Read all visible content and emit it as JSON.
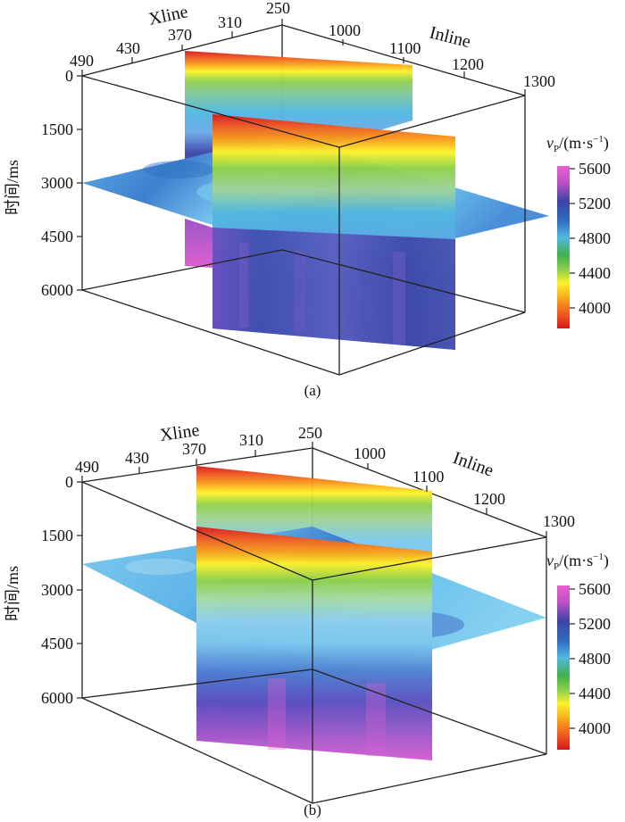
{
  "colors": {
    "scale": [
      "#d7191c",
      "#f05a22",
      "#f9a21c",
      "#fdf22a",
      "#8fd24b",
      "#3fb24c",
      "#50b8e0",
      "#2f6fc0",
      "#3a44a6",
      "#c04fc6",
      "#e860d0"
    ]
  },
  "legend": {
    "title_main": "v",
    "title_sub": "P",
    "title_rest": "/(m·s",
    "title_sup": "−1",
    "title_close": ")",
    "ticks": [
      "5600",
      "5200",
      "4800",
      "4400",
      "4000"
    ]
  },
  "axes": {
    "xline_label": "Xline",
    "inline_label": "Inline",
    "time_label": "时间/ms",
    "xline_ticks": [
      "490",
      "430",
      "370",
      "310",
      "250"
    ],
    "inline_ticks": [
      "1000",
      "1100",
      "1200",
      "1300"
    ],
    "time_ticks": [
      "0",
      "1500",
      "3000",
      "4500",
      "6000"
    ]
  },
  "panels": [
    {
      "caption": "(a)"
    },
    {
      "caption": "(b)"
    }
  ]
}
